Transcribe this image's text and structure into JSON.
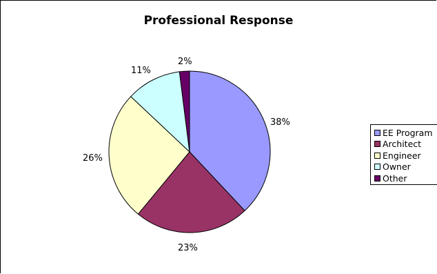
{
  "chart_data": {
    "type": "pie",
    "title": "Professional Response",
    "categories": [
      "EE Program",
      "Architect",
      "Engineer",
      "Owner",
      "Other"
    ],
    "values": [
      38,
      23,
      26,
      11,
      2
    ],
    "labels": [
      "38%",
      "23%",
      "26%",
      "11%",
      "2%"
    ],
    "colors": [
      "#9999ff",
      "#993366",
      "#ffffcc",
      "#ccffff",
      "#660066"
    ],
    "legend_position": "right"
  }
}
